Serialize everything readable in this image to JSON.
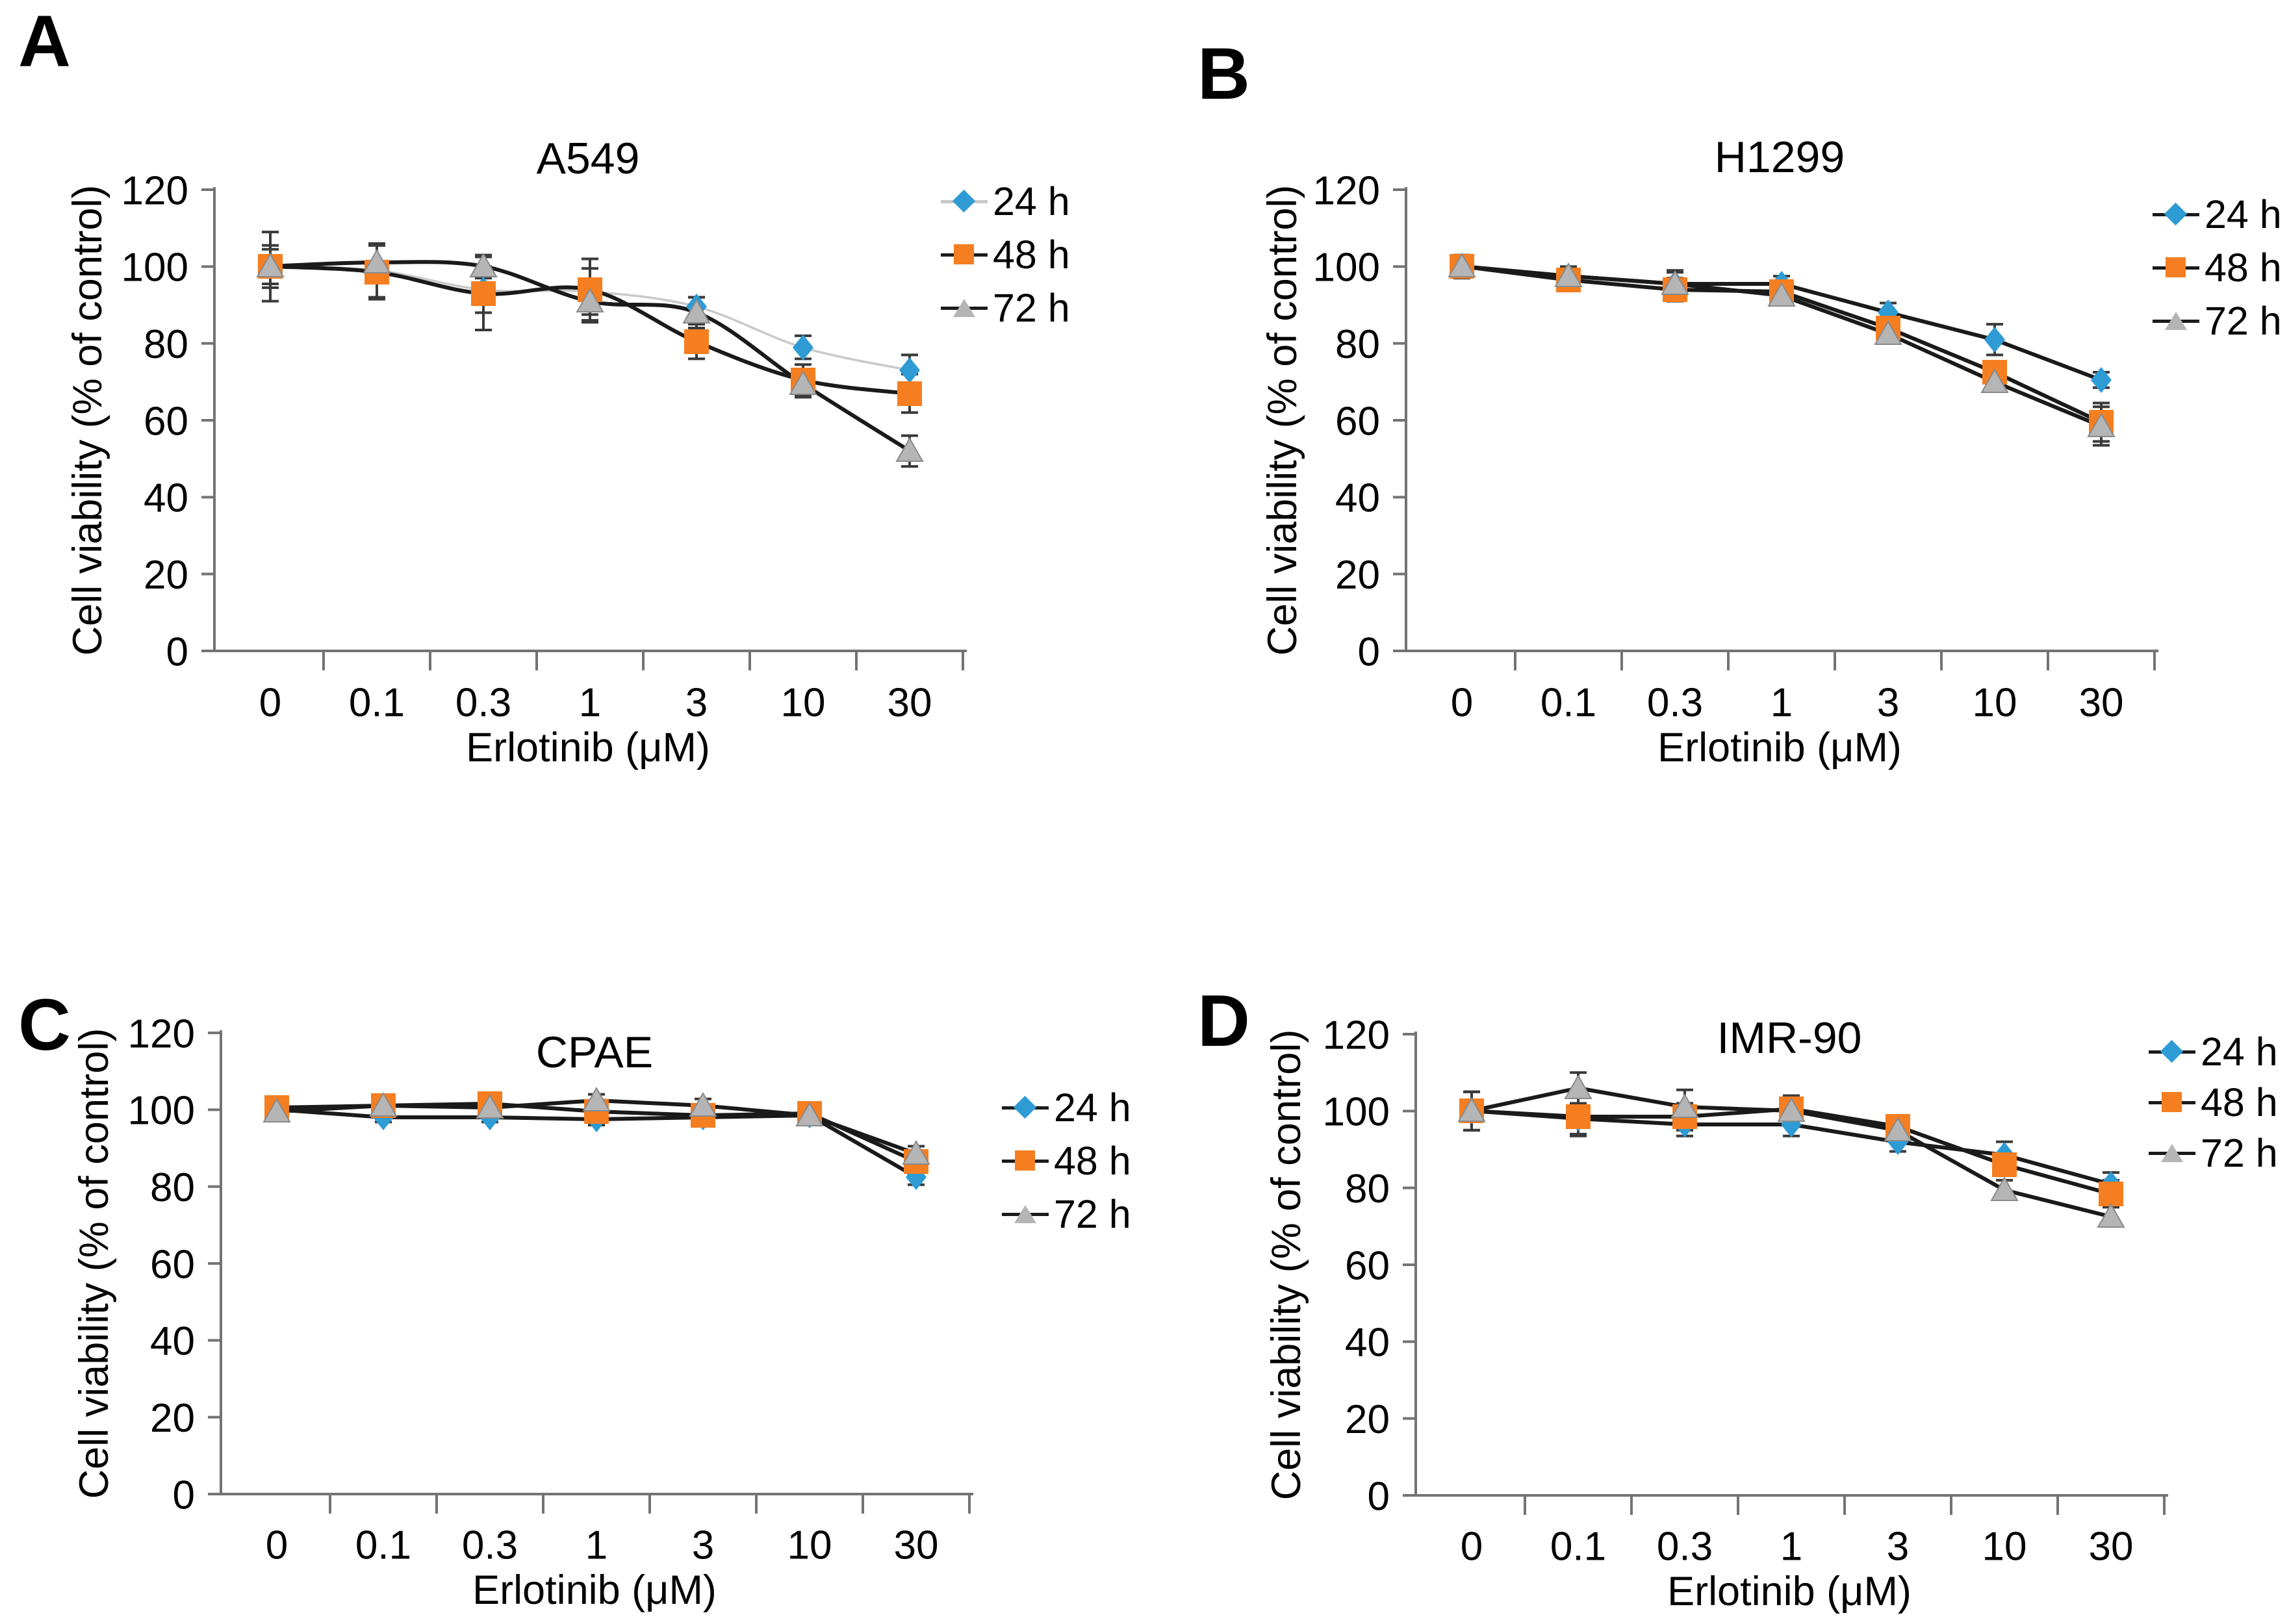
{
  "figure": {
    "background": "#ffffff",
    "text_color": "#000000",
    "axis_color": "#737373",
    "error_bar_color": "#3a3a3a",
    "series_line_color": "#1a1a1a",
    "panel_a_24h_line_color": "#c9c9c9"
  },
  "chart_data": [
    {
      "type": "line",
      "panel_letter": "A",
      "title": "A549",
      "xlabel": "Erlotinib (μM)",
      "ylabel": "Cell viability (% of control)",
      "categories": [
        "0",
        "0.1",
        "0.3",
        "1",
        "3",
        "10",
        "30"
      ],
      "ylim": [
        0,
        120
      ],
      "yticks": [
        0,
        20,
        40,
        60,
        80,
        100,
        120
      ],
      "grid": false,
      "legend_position": "right",
      "smooth": true,
      "series": [
        {
          "name": "24 h",
          "marker": "diamond",
          "color": "#2E9BD5",
          "line_color": "#c9c9c9",
          "line_width": 3.5,
          "values": [
            100,
            99,
            94,
            93.5,
            89.5,
            79,
            73
          ],
          "errors": [
            4.5,
            7,
            6,
            6,
            2.5,
            3,
            4
          ]
        },
        {
          "name": "48 h",
          "marker": "square",
          "color": "#F57E20",
          "line_color": "#1a1a1a",
          "line_width": 6,
          "values": [
            100,
            98.5,
            93,
            94,
            80.5,
            70.5,
            67
          ],
          "errors": [
            9,
            7,
            9.5,
            8,
            4.5,
            4,
            5
          ]
        },
        {
          "name": "72 h",
          "marker": "triangle",
          "color": "#B5B5B5",
          "marker_stroke": "#8a8a8a",
          "line_color": "#1a1a1a",
          "line_width": 6,
          "values": [
            100,
            101,
            100,
            91,
            88,
            69.5,
            52
          ],
          "errors": [
            5.5,
            4.5,
            3,
            5.5,
            4,
            3.5,
            4
          ]
        }
      ]
    },
    {
      "type": "line",
      "panel_letter": "B",
      "title": "H1299",
      "xlabel": "Erlotinib (μM)",
      "ylabel": "Cell viability (% of control)",
      "categories": [
        "0",
        "0.1",
        "0.3",
        "1",
        "3",
        "10",
        "30"
      ],
      "ylim": [
        0,
        120
      ],
      "yticks": [
        0,
        20,
        40,
        60,
        80,
        100,
        120
      ],
      "grid": false,
      "legend_position": "right",
      "smooth": false,
      "series": [
        {
          "name": "24 h",
          "marker": "diamond",
          "color": "#2E9BD5",
          "line_color": "#1a1a1a",
          "line_width": 6,
          "values": [
            100,
            97.5,
            95.5,
            95.5,
            88,
            81,
            70.5
          ],
          "errors": [
            3,
            2.5,
            3,
            2,
            2.5,
            4,
            2
          ]
        },
        {
          "name": "48 h",
          "marker": "square",
          "color": "#F57E20",
          "line_color": "#1a1a1a",
          "line_width": 6,
          "values": [
            100,
            96.5,
            94,
            93.5,
            84,
            72.5,
            59.5
          ],
          "errors": [
            2.5,
            2.5,
            3,
            2,
            2,
            2,
            5
          ]
        },
        {
          "name": "72 h",
          "marker": "triangle",
          "color": "#B5B5B5",
          "marker_stroke": "#8a8a8a",
          "line_color": "#1a1a1a",
          "line_width": 6,
          "values": [
            100,
            97.5,
            95.5,
            92.5,
            82.5,
            70,
            58.5
          ],
          "errors": [
            2,
            2,
            3.5,
            2.5,
            2,
            2,
            5
          ]
        }
      ]
    },
    {
      "type": "line",
      "panel_letter": "C",
      "title": "CPAE",
      "xlabel": "Erlotinib (μM)",
      "ylabel": "Cell viability (% of control)",
      "categories": [
        "0",
        "0.1",
        "0.3",
        "1",
        "3",
        "10",
        "30"
      ],
      "ylim": [
        0,
        120
      ],
      "yticks": [
        0,
        20,
        40,
        60,
        80,
        100,
        120
      ],
      "grid": false,
      "legend_position": "right",
      "smooth": false,
      "series": [
        {
          "name": "24 h",
          "marker": "diamond",
          "color": "#2E9BD5",
          "line_color": "#1a1a1a",
          "line_width": 6,
          "values": [
            100,
            98,
            98,
            97.5,
            98,
            98.5,
            82.5
          ],
          "errors": [
            2,
            1.2,
            1.2,
            1.5,
            1.2,
            1.2,
            2
          ]
        },
        {
          "name": "48 h",
          "marker": "square",
          "color": "#F57E20",
          "line_color": "#1a1a1a",
          "line_width": 6,
          "values": [
            100.5,
            101,
            101.5,
            99.5,
            98.5,
            99,
            86.5
          ],
          "errors": [
            2.5,
            1.5,
            1.5,
            2,
            1.5,
            1.2,
            2
          ]
        },
        {
          "name": "72 h",
          "marker": "triangle",
          "color": "#B5B5B5",
          "marker_stroke": "#8a8a8a",
          "line_color": "#1a1a1a",
          "line_width": 6,
          "values": [
            99.5,
            101,
            100.5,
            102.5,
            101,
            98.5,
            88.5
          ],
          "errors": [
            1.8,
            1.5,
            1.2,
            1.5,
            1.8,
            1.2,
            2
          ]
        }
      ]
    },
    {
      "type": "line",
      "panel_letter": "D",
      "title": "IMR-90",
      "xlabel": "Erlotinib (μM)",
      "ylabel": "Cell viability (% of control)",
      "categories": [
        "0",
        "0.1",
        "0.3",
        "1",
        "3",
        "10",
        "30"
      ],
      "ylim": [
        0,
        120
      ],
      "yticks": [
        0,
        20,
        40,
        60,
        80,
        100,
        120
      ],
      "grid": false,
      "legend_position": "right",
      "smooth": false,
      "series": [
        {
          "name": "24 h",
          "marker": "diamond",
          "color": "#2E9BD5",
          "line_color": "#1a1a1a",
          "line_width": 6,
          "values": [
            100,
            98,
            96.5,
            96.5,
            92,
            88.5,
            81
          ],
          "errors": [
            5,
            4,
            3,
            3,
            2.5,
            3.5,
            3
          ]
        },
        {
          "name": "48 h",
          "marker": "square",
          "color": "#F57E20",
          "line_color": "#1a1a1a",
          "line_width": 6,
          "values": [
            100,
            98.5,
            98.5,
            100.5,
            96,
            86,
            78.5
          ],
          "errors": [
            5,
            5,
            3.5,
            3.5,
            2,
            2.5,
            3.5
          ]
        },
        {
          "name": "72 h",
          "marker": "triangle",
          "color": "#B5B5B5",
          "marker_stroke": "#8a8a8a",
          "line_color": "#1a1a1a",
          "line_width": 6,
          "values": [
            100,
            106,
            101,
            100,
            95,
            79.5,
            72.5
          ],
          "errors": [
            5,
            4,
            4.5,
            3,
            2,
            2.5,
            2.5
          ]
        }
      ]
    }
  ]
}
